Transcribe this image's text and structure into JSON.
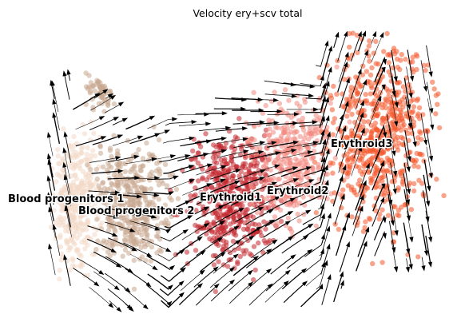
{
  "chart_data": {
    "type": "scatter",
    "title": "Velocity ery+scv total",
    "xlabel": "",
    "ylabel": "",
    "grid": false,
    "legend": "on data",
    "colors": {
      "blood_progenitors_1": "#f2d9c6",
      "blood_progenitors_2": "#c9a88f",
      "erythroid1": "#c2272d",
      "erythroid2": "#f28b82",
      "erythroid3": "#f4582b",
      "stream": "#000000"
    },
    "clusters": [
      {
        "label": "Blood progenitors 1",
        "color": "#f2d9c6"
      },
      {
        "label": "Blood progenitors 2",
        "color": "#c9a88f"
      },
      {
        "label": "Erythroid1",
        "color": "#c2272d"
      },
      {
        "label": "Erythroid2",
        "color": "#f28b82"
      },
      {
        "label": "Erythroid3",
        "color": "#f4582b"
      }
    ]
  }
}
